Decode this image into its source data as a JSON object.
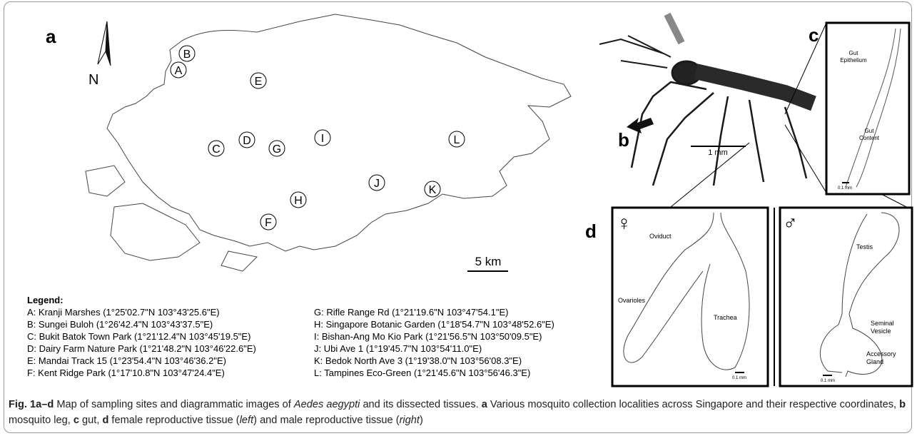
{
  "panel_labels": [
    "a",
    "b",
    "c",
    "d"
  ],
  "map": {
    "north": "N",
    "scale": "5 km",
    "sites": [
      "A",
      "B",
      "C",
      "D",
      "E",
      "F",
      "G",
      "H",
      "I",
      "J",
      "K",
      "L"
    ]
  },
  "legend": {
    "title": "Legend:",
    "entries": [
      "A: Kranji Marshes (1°25'02.7\"N 103°43'25.6\"E)",
      "B: Sungei Buloh (1°26'42.4\"N 103°43'37.5\"E)",
      "C: Bukit Batok Town Park (1°21'12.4\"N 103°45'19.5\"E)",
      "D: Dairy Farm Nature Park (1°21'48.2\"N 103°46'22.6\"E)",
      "E: Mandai Track 15 (1°23'54.4\"N 103°46'36.2\"E)",
      "F: Kent Ridge Park (1°17'10.8\"N 103°47'24.4\"E)",
      "G: Rifle Range Rd (1°21'19.6\"N 103°47'54.1\"E)",
      "H: Singapore Botanic Garden (1°18'54.7\"N 103°48'52.6\"E)",
      "I: Bishan-Ang Mo Kio Park (1°21'56.5\"N 103°50'09.5\"E)",
      "J: Ubi Ave 1 (1°19'45.7\"N 103°54'11.0\"E)",
      "K: Bedok North Ave 3 (1°19'38.0\"N 103°56'08.3\"E)",
      "L: Tampines Eco-Green (1°21'45.6\"N 103°56'46.3\"E)"
    ]
  },
  "mosquito": {
    "scale": "1 mm"
  },
  "gut": {
    "epithelium": [
      "Gut",
      "Epithelium"
    ],
    "content": [
      "Gut",
      "Content"
    ],
    "scale": "0.1 mm"
  },
  "female": {
    "symbol": "♀",
    "oviduct": "Oviduct",
    "ovarioles": "Ovarioles",
    "trachea": "Trachea",
    "scale": "0.1 mm"
  },
  "male": {
    "symbol": "♂",
    "testis": "Testis",
    "seminal_vesicle": [
      "Seminal",
      "Vesicle"
    ],
    "accessory_gland": [
      "Accessory",
      "Gland"
    ],
    "scale": "0.1 mm"
  },
  "caption": [
    "Fig. 1a–d",
    " Map of sampling sites and diagrammatic images of ",
    "Aedes aegypti",
    " and its dissected tissues. ",
    "a",
    " Various mosquito collection localities across Singapore and their respective coordinates, ",
    "b",
    " mosquito leg, ",
    "c",
    " gut, ",
    "d",
    " female reproductive tissue (",
    "left",
    ") and male reproductive tissue (",
    "right",
    ")"
  ]
}
